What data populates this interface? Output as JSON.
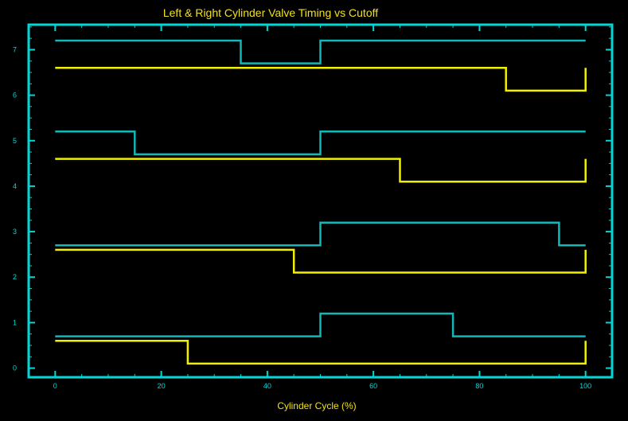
{
  "colors": {
    "background": "#000000",
    "frame": "#00d8d8",
    "tick_labels": "#00d8d8",
    "title": "#f0e020",
    "series_cyan": "#10b8b8",
    "series_yellow": "#f0f000"
  },
  "chart_data": {
    "type": "line",
    "title": "Left & Right Cylinder Valve Timing vs Cutoff",
    "xlabel": "Cylinder Cycle (%)",
    "ylabel": "",
    "xlim": [
      -5,
      105
    ],
    "ylim": [
      -0.2,
      7.55
    ],
    "grid": false,
    "x_ticks": [
      0,
      20,
      40,
      60,
      80,
      100
    ],
    "y_ticks": [
      0,
      1,
      2,
      3,
      4,
      5,
      6,
      7
    ],
    "series": [
      {
        "color": "#10b8b8",
        "x": [
          0,
          50,
          50,
          75,
          75,
          100
        ],
        "y": [
          0.7,
          0.7,
          1.2,
          1.2,
          0.7,
          0.7
        ]
      },
      {
        "color": "#f0f000",
        "x": [
          0,
          25,
          25,
          100,
          100
        ],
        "y": [
          0.6,
          0.6,
          0.1,
          0.1,
          0.6
        ]
      },
      {
        "color": "#10b8b8",
        "x": [
          0,
          50,
          50,
          95,
          95,
          100
        ],
        "y": [
          2.7,
          2.7,
          3.2,
          3.2,
          2.7,
          2.7
        ]
      },
      {
        "color": "#f0f000",
        "x": [
          0,
          45,
          45,
          100,
          100
        ],
        "y": [
          2.6,
          2.6,
          2.1,
          2.1,
          2.6
        ]
      },
      {
        "color": "#10b8b8",
        "x": [
          0,
          15,
          15,
          50,
          50,
          100
        ],
        "y": [
          5.2,
          5.2,
          4.7,
          4.7,
          5.2,
          5.2
        ]
      },
      {
        "color": "#f0f000",
        "x": [
          0,
          65,
          65,
          100,
          100
        ],
        "y": [
          4.6,
          4.6,
          4.1,
          4.1,
          4.6
        ]
      },
      {
        "color": "#10b8b8",
        "x": [
          0,
          35,
          35,
          50,
          50,
          100
        ],
        "y": [
          7.2,
          7.2,
          6.7,
          6.7,
          7.2,
          7.2
        ]
      },
      {
        "color": "#f0f000",
        "x": [
          0,
          85,
          85,
          100,
          100
        ],
        "y": [
          6.6,
          6.6,
          6.1,
          6.1,
          6.6
        ]
      }
    ]
  }
}
